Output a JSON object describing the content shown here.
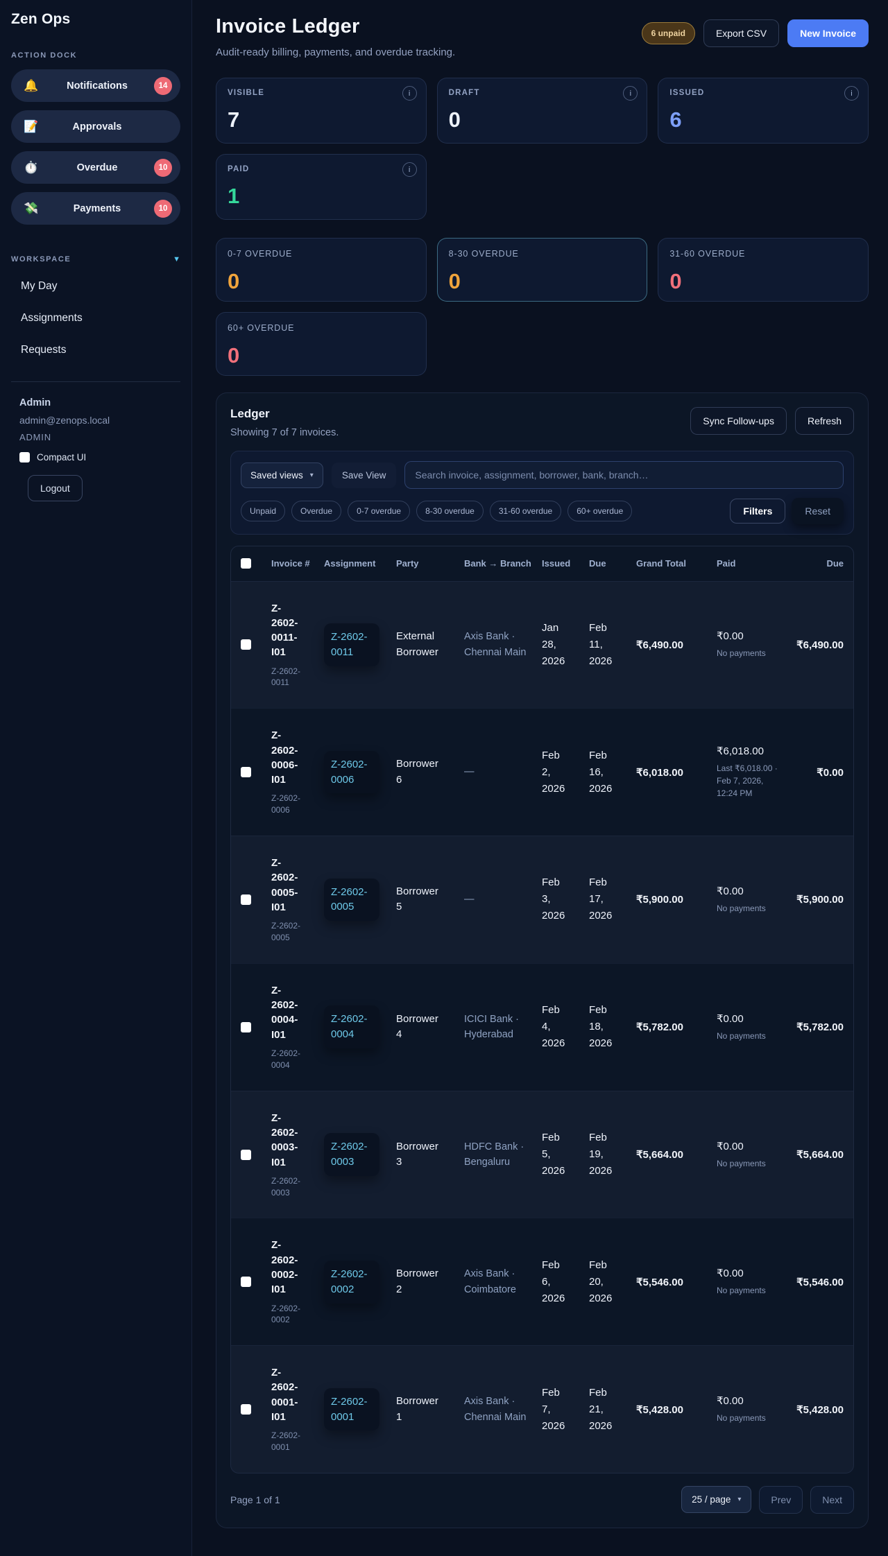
{
  "app": {
    "name": "Zen Ops"
  },
  "sidebar": {
    "action_dock_label": "ACTION DOCK",
    "dock_items": [
      {
        "icon": "bell-icon",
        "glyph": "🔔",
        "label": "Notifications",
        "badge": "14"
      },
      {
        "icon": "memo-icon",
        "glyph": "📝",
        "label": "Approvals",
        "badge": ""
      },
      {
        "icon": "stopwatch-icon",
        "glyph": "⏱️",
        "label": "Overdue",
        "badge": "10"
      },
      {
        "icon": "money-wings-icon",
        "glyph": "💸",
        "label": "Payments",
        "badge": "10"
      }
    ],
    "workspace_label": "WORKSPACE",
    "workspace_items": [
      "My Day",
      "Assignments",
      "Requests"
    ],
    "user": {
      "name": "Admin",
      "email": "admin@zenops.local",
      "role": "ADMIN"
    },
    "compact_ui_label": "Compact UI",
    "logout_label": "Logout"
  },
  "header": {
    "title": "Invoice Ledger",
    "subtitle": "Audit-ready billing, payments, and overdue tracking.",
    "unpaid_badge": "6 unpaid",
    "export_csv_label": "Export CSV",
    "new_invoice_label": "New Invoice"
  },
  "colors": {
    "accent_blue": "#4c7bf4",
    "link_cyan": "#6ec9e9",
    "green": "#35d89b",
    "orange": "#f0a43c",
    "red": "#f1707b",
    "badge_red": "#ee6a75"
  },
  "stats": [
    {
      "label": "VISIBLE",
      "value": "7",
      "color": "#edf2fa",
      "info_icon": "i"
    },
    {
      "label": "DRAFT",
      "value": "0",
      "color": "#edf2fa",
      "info_icon": "i"
    },
    {
      "label": "ISSUED",
      "value": "6",
      "color": "#7d9ff8",
      "info_icon": "i"
    },
    {
      "label": "PAID",
      "value": "1",
      "color": "#35d89b",
      "info_icon": "i"
    }
  ],
  "overdue_stats": [
    {
      "label": "0-7 OVERDUE",
      "value": "0",
      "color": "#f0a43c",
      "border": "rgba(124,152,210,0.18)"
    },
    {
      "label": "8-30 OVERDUE",
      "value": "0",
      "color": "#f0a43c",
      "border": "rgba(106,189,214,0.5)"
    },
    {
      "label": "31-60 OVERDUE",
      "value": "0",
      "color": "#f1707b",
      "border": "rgba(124,152,210,0.18)"
    },
    {
      "label": "60+ OVERDUE",
      "value": "0",
      "color": "#f1707b",
      "border": "rgba(124,152,210,0.18)"
    }
  ],
  "ledger": {
    "title": "Ledger",
    "subtitle": "Showing 7 of 7 invoices.",
    "sync_label": "Sync Follow-ups",
    "refresh_label": "Refresh",
    "saved_views_label": "Saved views",
    "save_view_label": "Save View",
    "search_placeholder": "Search invoice, assignment, borrower, bank, branch…",
    "chips": [
      "Unpaid",
      "Overdue",
      "0-7 overdue",
      "8-30 overdue",
      "31-60 overdue",
      "60+ overdue"
    ],
    "filters_label": "Filters",
    "reset_label": "Reset",
    "table": {
      "columns": [
        "Invoice #",
        "Assignment",
        "Party",
        "Bank → Branch",
        "Issued",
        "Due",
        "Grand Total",
        "Paid",
        "Due"
      ],
      "rows": [
        {
          "invoice": "Z-2602-0011-I01",
          "invoice_sub": "Z-2602-0011",
          "assignment": "Z-2602-0011",
          "party": "External Borrower",
          "bank": "Axis Bank · Chennai Main",
          "issued": "Jan 28, 2026",
          "due": "Feb 11, 2026",
          "grand_total": "₹6,490.00",
          "paid": "₹0.00",
          "paid_note": "No payments",
          "due_amount": "₹6,490.00"
        },
        {
          "invoice": "Z-2602-0006-I01",
          "invoice_sub": "Z-2602-0006",
          "assignment": "Z-2602-0006",
          "party": "Borrower 6",
          "bank": "—",
          "issued": "Feb 2, 2026",
          "due": "Feb 16, 2026",
          "grand_total": "₹6,018.00",
          "paid": "₹6,018.00",
          "paid_note": "Last ₹6,018.00 · Feb 7, 2026, 12:24 PM",
          "due_amount": "₹0.00"
        },
        {
          "invoice": "Z-2602-0005-I01",
          "invoice_sub": "Z-2602-0005",
          "assignment": "Z-2602-0005",
          "party": "Borrower 5",
          "bank": "—",
          "issued": "Feb 3, 2026",
          "due": "Feb 17, 2026",
          "grand_total": "₹5,900.00",
          "paid": "₹0.00",
          "paid_note": "No payments",
          "due_amount": "₹5,900.00"
        },
        {
          "invoice": "Z-2602-0004-I01",
          "invoice_sub": "Z-2602-0004",
          "assignment": "Z-2602-0004",
          "party": "Borrower 4",
          "bank": "ICICI Bank · Hyderabad",
          "issued": "Feb 4, 2026",
          "due": "Feb 18, 2026",
          "grand_total": "₹5,782.00",
          "paid": "₹0.00",
          "paid_note": "No payments",
          "due_amount": "₹5,782.00"
        },
        {
          "invoice": "Z-2602-0003-I01",
          "invoice_sub": "Z-2602-0003",
          "assignment": "Z-2602-0003",
          "party": "Borrower 3",
          "bank": "HDFC Bank · Bengaluru",
          "issued": "Feb 5, 2026",
          "due": "Feb 19, 2026",
          "grand_total": "₹5,664.00",
          "paid": "₹0.00",
          "paid_note": "No payments",
          "due_amount": "₹5,664.00"
        },
        {
          "invoice": "Z-2602-0002-I01",
          "invoice_sub": "Z-2602-0002",
          "assignment": "Z-2602-0002",
          "party": "Borrower 2",
          "bank": "Axis Bank · Coimbatore",
          "issued": "Feb 6, 2026",
          "due": "Feb 20, 2026",
          "grand_total": "₹5,546.00",
          "paid": "₹0.00",
          "paid_note": "No payments",
          "due_amount": "₹5,546.00"
        },
        {
          "invoice": "Z-2602-0001-I01",
          "invoice_sub": "Z-2602-0001",
          "assignment": "Z-2602-0001",
          "party": "Borrower 1",
          "bank": "Axis Bank · Chennai Main",
          "issued": "Feb 7, 2026",
          "due": "Feb 21, 2026",
          "grand_total": "₹5,428.00",
          "paid": "₹0.00",
          "paid_note": "No payments",
          "due_amount": "₹5,428.00"
        }
      ]
    },
    "footer": {
      "page_label": "Page 1 of 1",
      "per_page": "25 / page",
      "prev_label": "Prev",
      "next_label": "Next"
    }
  }
}
